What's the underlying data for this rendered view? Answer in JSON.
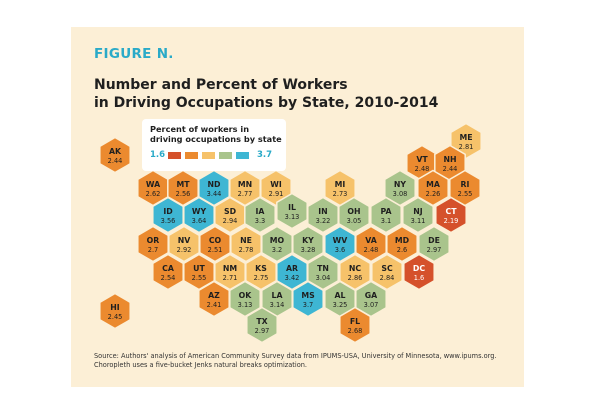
{
  "figure_label": "FIGURE N.",
  "title_lines": [
    "Number and Percent of Workers",
    "in Driving Occupations by State, 2010-2014"
  ],
  "legend": {
    "title_lines": [
      "Percent of workers in",
      "driving occupations by state"
    ],
    "min": "1.6",
    "max": "3.7",
    "colors": [
      "#d5512b",
      "#eb8a2f",
      "#f6c26a",
      "#a9c48c",
      "#3eb6d3"
    ]
  },
  "source_lines": [
    "Source: Authors' analysis of American Community Survey data from IPUMS-USA, University of Minnesota, www.ipums.org.",
    "Choropleth uses a five-bucket Jenks natural breaks optimization."
  ],
  "states": [
    {
      "abbr": "ME",
      "value": "2.81",
      "color": "#f6c26a"
    },
    {
      "abbr": "AK",
      "value": "2.44",
      "color": "#eb8a2f"
    },
    {
      "abbr": "VT",
      "value": "2.48",
      "color": "#eb8a2f"
    },
    {
      "abbr": "NH",
      "value": "2.44",
      "color": "#eb8a2f"
    },
    {
      "abbr": "WA",
      "value": "2.62",
      "color": "#eb8a2f"
    },
    {
      "abbr": "MT",
      "value": "2.56",
      "color": "#eb8a2f"
    },
    {
      "abbr": "ND",
      "value": "3.44",
      "color": "#3eb6d3"
    },
    {
      "abbr": "MN",
      "value": "2.77",
      "color": "#f6c26a"
    },
    {
      "abbr": "WI",
      "value": "2.91",
      "color": "#f6c26a"
    },
    {
      "abbr": "MI",
      "value": "2.73",
      "color": "#f6c26a"
    },
    {
      "abbr": "NY",
      "value": "3.08",
      "color": "#a9c48c"
    },
    {
      "abbr": "MA",
      "value": "2.26",
      "color": "#eb8a2f"
    },
    {
      "abbr": "RI",
      "value": "2.55",
      "color": "#eb8a2f"
    },
    {
      "abbr": "ID",
      "value": "3.56",
      "color": "#3eb6d3"
    },
    {
      "abbr": "WY",
      "value": "3.64",
      "color": "#3eb6d3"
    },
    {
      "abbr": "SD",
      "value": "2.94",
      "color": "#f6c26a"
    },
    {
      "abbr": "IA",
      "value": "3.3",
      "color": "#a9c48c"
    },
    {
      "abbr": "IL",
      "value": "3.13",
      "color": "#a9c48c"
    },
    {
      "abbr": "IN",
      "value": "3.22",
      "color": "#a9c48c"
    },
    {
      "abbr": "OH",
      "value": "3.05",
      "color": "#a9c48c"
    },
    {
      "abbr": "PA",
      "value": "3.1",
      "color": "#a9c48c"
    },
    {
      "abbr": "NJ",
      "value": "3.11",
      "color": "#a9c48c"
    },
    {
      "abbr": "CT",
      "value": "2.19",
      "color": "#d5512b"
    },
    {
      "abbr": "OR",
      "value": "2.7",
      "color": "#eb8a2f"
    },
    {
      "abbr": "NV",
      "value": "2.92",
      "color": "#f6c26a"
    },
    {
      "abbr": "CO",
      "value": "2.51",
      "color": "#eb8a2f"
    },
    {
      "abbr": "NE",
      "value": "2.78",
      "color": "#f6c26a"
    },
    {
      "abbr": "MO",
      "value": "3.2",
      "color": "#a9c48c"
    },
    {
      "abbr": "KY",
      "value": "3.28",
      "color": "#a9c48c"
    },
    {
      "abbr": "WV",
      "value": "3.6",
      "color": "#3eb6d3"
    },
    {
      "abbr": "VA",
      "value": "2.48",
      "color": "#eb8a2f"
    },
    {
      "abbr": "MD",
      "value": "2.6",
      "color": "#eb8a2f"
    },
    {
      "abbr": "DE",
      "value": "2.97",
      "color": "#a9c48c"
    },
    {
      "abbr": "CA",
      "value": "2.54",
      "color": "#eb8a2f"
    },
    {
      "abbr": "UT",
      "value": "2.55",
      "color": "#eb8a2f"
    },
    {
      "abbr": "NM",
      "value": "2.71",
      "color": "#f6c26a"
    },
    {
      "abbr": "KS",
      "value": "2.75",
      "color": "#f6c26a"
    },
    {
      "abbr": "AR",
      "value": "3.42",
      "color": "#3eb6d3"
    },
    {
      "abbr": "TN",
      "value": "3.04",
      "color": "#a9c48c"
    },
    {
      "abbr": "NC",
      "value": "2.86",
      "color": "#f6c26a"
    },
    {
      "abbr": "SC",
      "value": "2.84",
      "color": "#f6c26a"
    },
    {
      "abbr": "DC",
      "value": "1.6",
      "color": "#d5512b"
    },
    {
      "abbr": "AZ",
      "value": "2.41",
      "color": "#eb8a2f"
    },
    {
      "abbr": "OK",
      "value": "3.13",
      "color": "#a9c48c"
    },
    {
      "abbr": "LA",
      "value": "3.14",
      "color": "#a9c48c"
    },
    {
      "abbr": "MS",
      "value": "3.7",
      "color": "#3eb6d3"
    },
    {
      "abbr": "AL",
      "value": "3.25",
      "color": "#a9c48c"
    },
    {
      "abbr": "GA",
      "value": "3.07",
      "color": "#a9c48c"
    },
    {
      "abbr": "HI",
      "value": "2.45",
      "color": "#eb8a2f"
    },
    {
      "abbr": "TX",
      "value": "2.97",
      "color": "#a9c48c"
    },
    {
      "abbr": "FL",
      "value": "2.68",
      "color": "#eb8a2f"
    }
  ]
}
